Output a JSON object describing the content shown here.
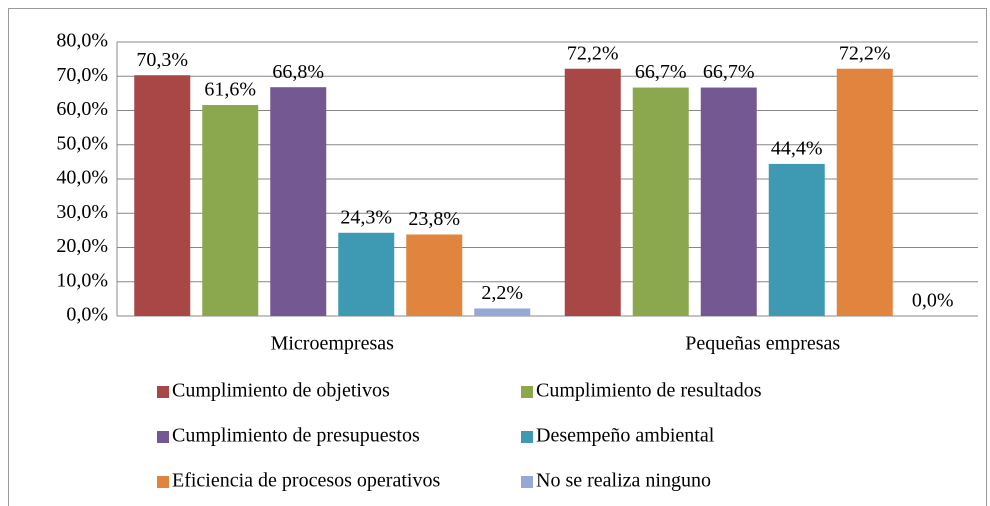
{
  "chart_data": {
    "type": "bar",
    "categories": [
      "Microempresas",
      "Pequeñas empresas"
    ],
    "series": [
      {
        "name": "Cumplimiento de objetivos",
        "color": "#a94747",
        "values": [
          70.3,
          72.2
        ],
        "value_labels": [
          "70,3%",
          "72,2%"
        ]
      },
      {
        "name": "Cumplimiento de resultados",
        "color": "#8ba84e",
        "values": [
          61.6,
          66.7
        ],
        "value_labels": [
          "61,6%",
          "66,7%"
        ]
      },
      {
        "name": "Cumplimiento de presupuestos",
        "color": "#735891",
        "values": [
          66.8,
          66.7
        ],
        "value_labels": [
          "66,8%",
          "66,7%"
        ]
      },
      {
        "name": "Desempeño ambiental",
        "color": "#3e9ab2",
        "values": [
          24.3,
          44.4
        ],
        "value_labels": [
          "24,3%",
          "44,4%"
        ]
      },
      {
        "name": "Eficiencia de procesos operativos",
        "color": "#e0843e",
        "values": [
          23.8,
          72.2
        ],
        "value_labels": [
          "23,8%",
          "72,2%"
        ]
      },
      {
        "name": "No se realiza ninguno",
        "color": "#96a9d6",
        "values": [
          2.2,
          0.0
        ],
        "value_labels": [
          "2,2%",
          "0,0%"
        ]
      }
    ],
    "ylim": [
      0,
      80
    ],
    "yticks": [
      {
        "value": 0,
        "label": "0,0%"
      },
      {
        "value": 10,
        "label": "10,0%"
      },
      {
        "value": 20,
        "label": "20,0%"
      },
      {
        "value": 30,
        "label": "30,0%"
      },
      {
        "value": 40,
        "label": "40,0%"
      },
      {
        "value": 50,
        "label": "50,0%"
      },
      {
        "value": 60,
        "label": "60,0%"
      },
      {
        "value": 70,
        "label": "70,0%"
      },
      {
        "value": 80,
        "label": "80,0%"
      }
    ],
    "grid": true,
    "legend": "bottom"
  }
}
